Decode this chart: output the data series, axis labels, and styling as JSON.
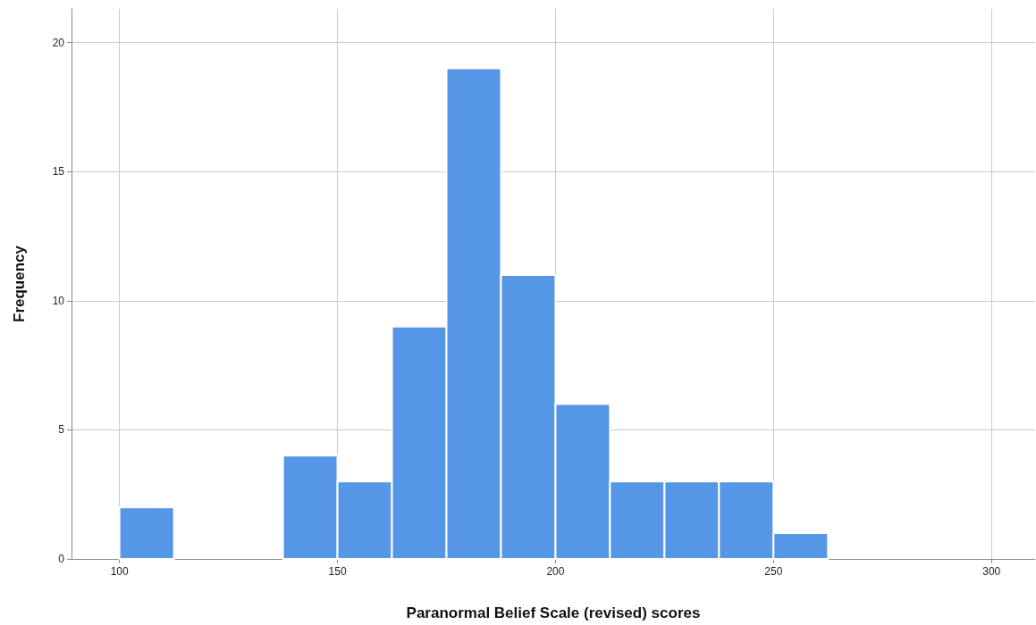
{
  "chart_data": {
    "type": "histogram",
    "xlabel": "Paranormal Belief Scale (revised) scores",
    "ylabel": "Frequency",
    "bins": [
      100,
      112.5,
      125,
      137.5,
      150,
      162.5,
      175,
      187.5,
      200,
      212.5,
      225,
      237.5,
      250,
      262.5
    ],
    "values": [
      2,
      0,
      0,
      4,
      3,
      9,
      19,
      11,
      6,
      3,
      3,
      3,
      1
    ],
    "color": "#5596e6",
    "xlim": [
      89,
      310
    ],
    "xticks": [
      100,
      150,
      200,
      250,
      300
    ],
    "ylim": [
      0,
      21.3
    ],
    "yticks": [
      0,
      5,
      10,
      15,
      20
    ],
    "grid": true
  }
}
